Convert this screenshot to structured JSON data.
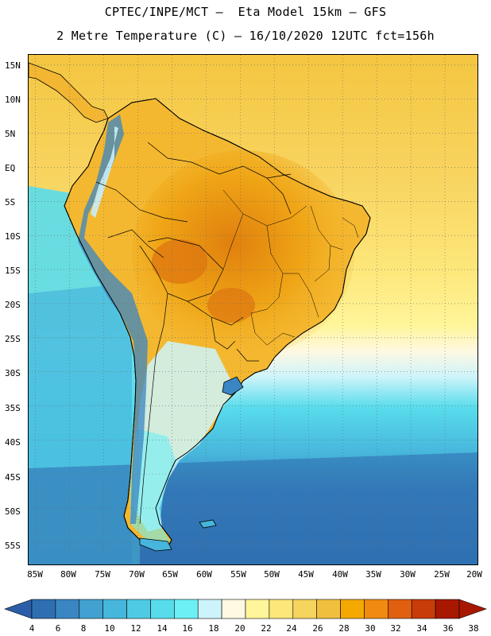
{
  "title": {
    "line1": "CPTEC/INPE/MCT –  Eta Model 15km – GFS",
    "line2": "2 Metre Temperature (C) – 16/10/2020 12UTC fct=156h"
  },
  "map": {
    "projection": "lat-lon",
    "lat_range": [
      -58.5,
      16.5
    ],
    "lon_range": [
      -86,
      -20
    ],
    "lat_ticks": [
      "15N",
      "10N",
      "5N",
      "EQ",
      "5S",
      "10S",
      "15S",
      "20S",
      "25S",
      "30S",
      "35S",
      "40S",
      "45S",
      "50S",
      "55S"
    ],
    "lon_ticks": [
      "85W",
      "80W",
      "75W",
      "70W",
      "65W",
      "60W",
      "55W",
      "50W",
      "45W",
      "40W",
      "35W",
      "30W",
      "25W",
      "20W"
    ],
    "gridlines": "dotted",
    "features": [
      "coastlines",
      "country borders",
      "Brazilian state borders"
    ],
    "ocean_pattern": "warm (26-30C) in tropics, cooling southward to 6-8C near 55S; cool 16-20C along Pacific coast",
    "land_pattern": "32-34C over central Brazil/Bolivia, 28-30C elsewhere in the tropics, cooler 8-16C along the Andes and Patagonia"
  },
  "colorbar": {
    "labels": [
      "4",
      "6",
      "8",
      "10",
      "12",
      "14",
      "16",
      "18",
      "20",
      "22",
      "24",
      "26",
      "28",
      "30",
      "32",
      "34",
      "36",
      "38"
    ],
    "colors": [
      "#2f6fb1",
      "#3a86c3",
      "#42a1d0",
      "#47b6dc",
      "#4fcae4",
      "#58dcec",
      "#6cf0f6",
      "#cdf4fa",
      "#fff8e2",
      "#fff59a",
      "#fde77a",
      "#f6d45e",
      "#f0bf3e",
      "#f4a800",
      "#f08a10",
      "#e06010",
      "#c83c08",
      "#a81800"
    ],
    "left_arrow_color": "#2a5ea8",
    "right_arrow_color": "#a81800"
  }
}
